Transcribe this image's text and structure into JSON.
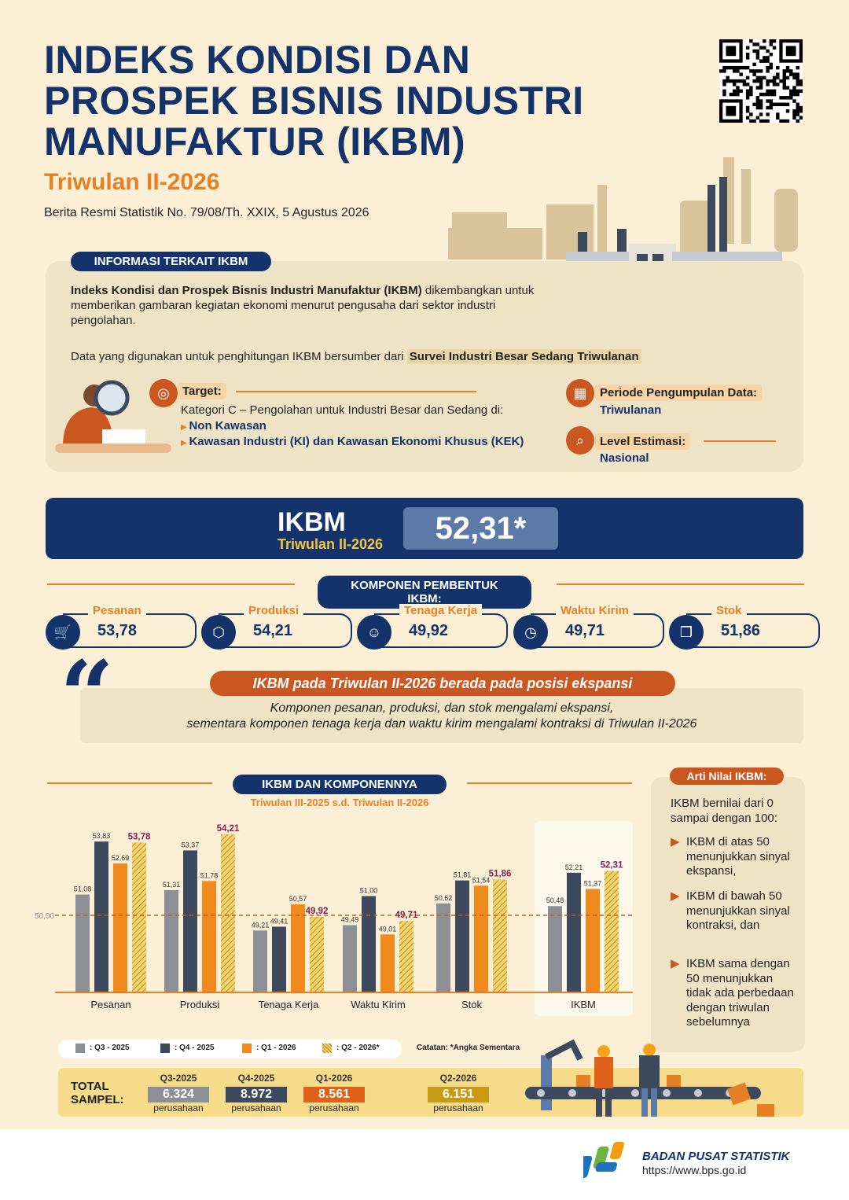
{
  "header": {
    "title_line1": "INDEKS KONDISI DAN",
    "title_line2": "PROSPEK BISNIS INDUSTRI",
    "title_line3": "MANUFAKTUR (IKBM)",
    "subtitle": "Triwulan II-2026",
    "release": "Berita Resmi Statistik No. 79/08/Th. XXIX, 5 Agustus 2026"
  },
  "info": {
    "pill": "INFORMASI TERKAIT IKBM",
    "intro_bold": "Indeks Kondisi dan Prospek Bisnis Industri Manufaktur (IKBM)",
    "intro_rest": " dikembangkan untuk memberikan gambaran kegiatan ekonomi menurut pengusaha dari sektor industri pengolahan.",
    "source_text": "Data yang digunakan untuk penghitungan IKBM bersumber dari",
    "source_hl": "Survei Industri Besar Sedang Triwulanan",
    "target_label": "Target:",
    "target_text": "Kategori C – Pengolahan untuk Industri Besar dan Sedang di:",
    "target_item1": "Non Kawasan",
    "target_item2": "Kawasan Industri (KI) dan Kawasan Ekonomi Khusus (KEK)",
    "periode_label": "Periode Pengumpulan Data:",
    "periode_value": "Triwulanan",
    "level_label": "Level Estimasi:",
    "level_value": "Nasional"
  },
  "ikbm": {
    "label": "IKBM",
    "period": "Triwulan II-2026",
    "value": "52,31*"
  },
  "komponen": {
    "pill": "KOMPONEN PEMBENTUK IKBM:",
    "items": [
      {
        "label": "Pesanan",
        "value": "53,78",
        "icon": "cart-icon"
      },
      {
        "label": "Produksi",
        "value": "54,21",
        "icon": "box-icon"
      },
      {
        "label": "Tenaga Kerja",
        "value": "49,92",
        "icon": "worker-icon"
      },
      {
        "label": "Waktu Kirim",
        "value": "49,71",
        "icon": "clock-icon"
      },
      {
        "label": "Stok",
        "value": "51,86",
        "icon": "boxes-icon"
      }
    ]
  },
  "quote": {
    "headline": "IKBM pada Triwulan II-2026 berada pada posisi ekspansi",
    "line1": "Komponen pesanan, produksi, dan stok mengalami ekspansi,",
    "line2": "sementara komponen tenaga kerja dan waktu kirim mengalami kontraksi di Triwulan II-2026"
  },
  "chart_data": {
    "type": "bar",
    "title": "IKBM DAN KOMPONENNYA",
    "subtitle": "Triwulan III-2025 s.d. Triwulan II-2026",
    "reference_line": 50.0,
    "reference_label": "50,00",
    "categories": [
      "Pesanan",
      "Produksi",
      "Tenaga Kerja",
      "Waktu Kirim",
      "Stok",
      "IKBM"
    ],
    "series": [
      {
        "name": ": Q3 - 2025",
        "values": [
          51.08,
          51.31,
          49.21,
          49.49,
          50.62,
          50.48
        ],
        "labels": [
          "51,08",
          "51,31",
          "49,21",
          "49,49",
          "50,62",
          "50,48"
        ],
        "color": "#8c8f96"
      },
      {
        "name": ": Q4 - 2025",
        "values": [
          53.83,
          53.37,
          49.41,
          51.0,
          51.81,
          52.21
        ],
        "labels": [
          "53,83",
          "53,37",
          "49,41",
          "51,00",
          "51,81",
          "52,21"
        ],
        "color": "#3d4a5e"
      },
      {
        "name": ": Q1 - 2026",
        "values": [
          52.69,
          51.78,
          50.57,
          49.01,
          51.54,
          51.37
        ],
        "labels": [
          "52,69",
          "51,78",
          "50,57",
          "49,01",
          "51,54",
          "51,37"
        ],
        "color": "#f08a1c"
      },
      {
        "name": ": Q2 - 2026*",
        "values": [
          53.78,
          54.21,
          49.92,
          49.71,
          51.86,
          52.31
        ],
        "labels": [
          "53,78",
          "54,21",
          "49,92",
          "49,71",
          "51,86",
          "52,31"
        ],
        "color": "#e5b53a"
      }
    ],
    "note": "Catatan: *Angka Sementara"
  },
  "arti": {
    "pill": "Arti Nilai IKBM:",
    "intro": "IKBM bernilai dari 0 sampai dengan 100:",
    "b1": "IKBM di atas 50 menunjukkan sinyal ekspansi,",
    "b2": "IKBM di bawah 50 menunjukkan sinyal kontraksi, dan",
    "b3": "IKBM sama dengan 50 menunjukkan tidak ada perbedaan dengan triwulan sebelumnya"
  },
  "sampel": {
    "label1": "TOTAL",
    "label2": "SAMPEL:",
    "unit": "perusahaan",
    "items": [
      {
        "q": "Q3-2025",
        "v": "6.324",
        "color": "#8c8f96"
      },
      {
        "q": "Q4-2025",
        "v": "8.972",
        "color": "#3d4a5e"
      },
      {
        "q": "Q1-2026",
        "v": "8.561",
        "color": "#e0611a"
      },
      {
        "q": "Q2-2026",
        "v": "6.151",
        "color": "#c99a16"
      }
    ]
  },
  "footer": {
    "org": "BADAN PUSAT STATISTIK",
    "url": "https://www.bps.go.id"
  }
}
